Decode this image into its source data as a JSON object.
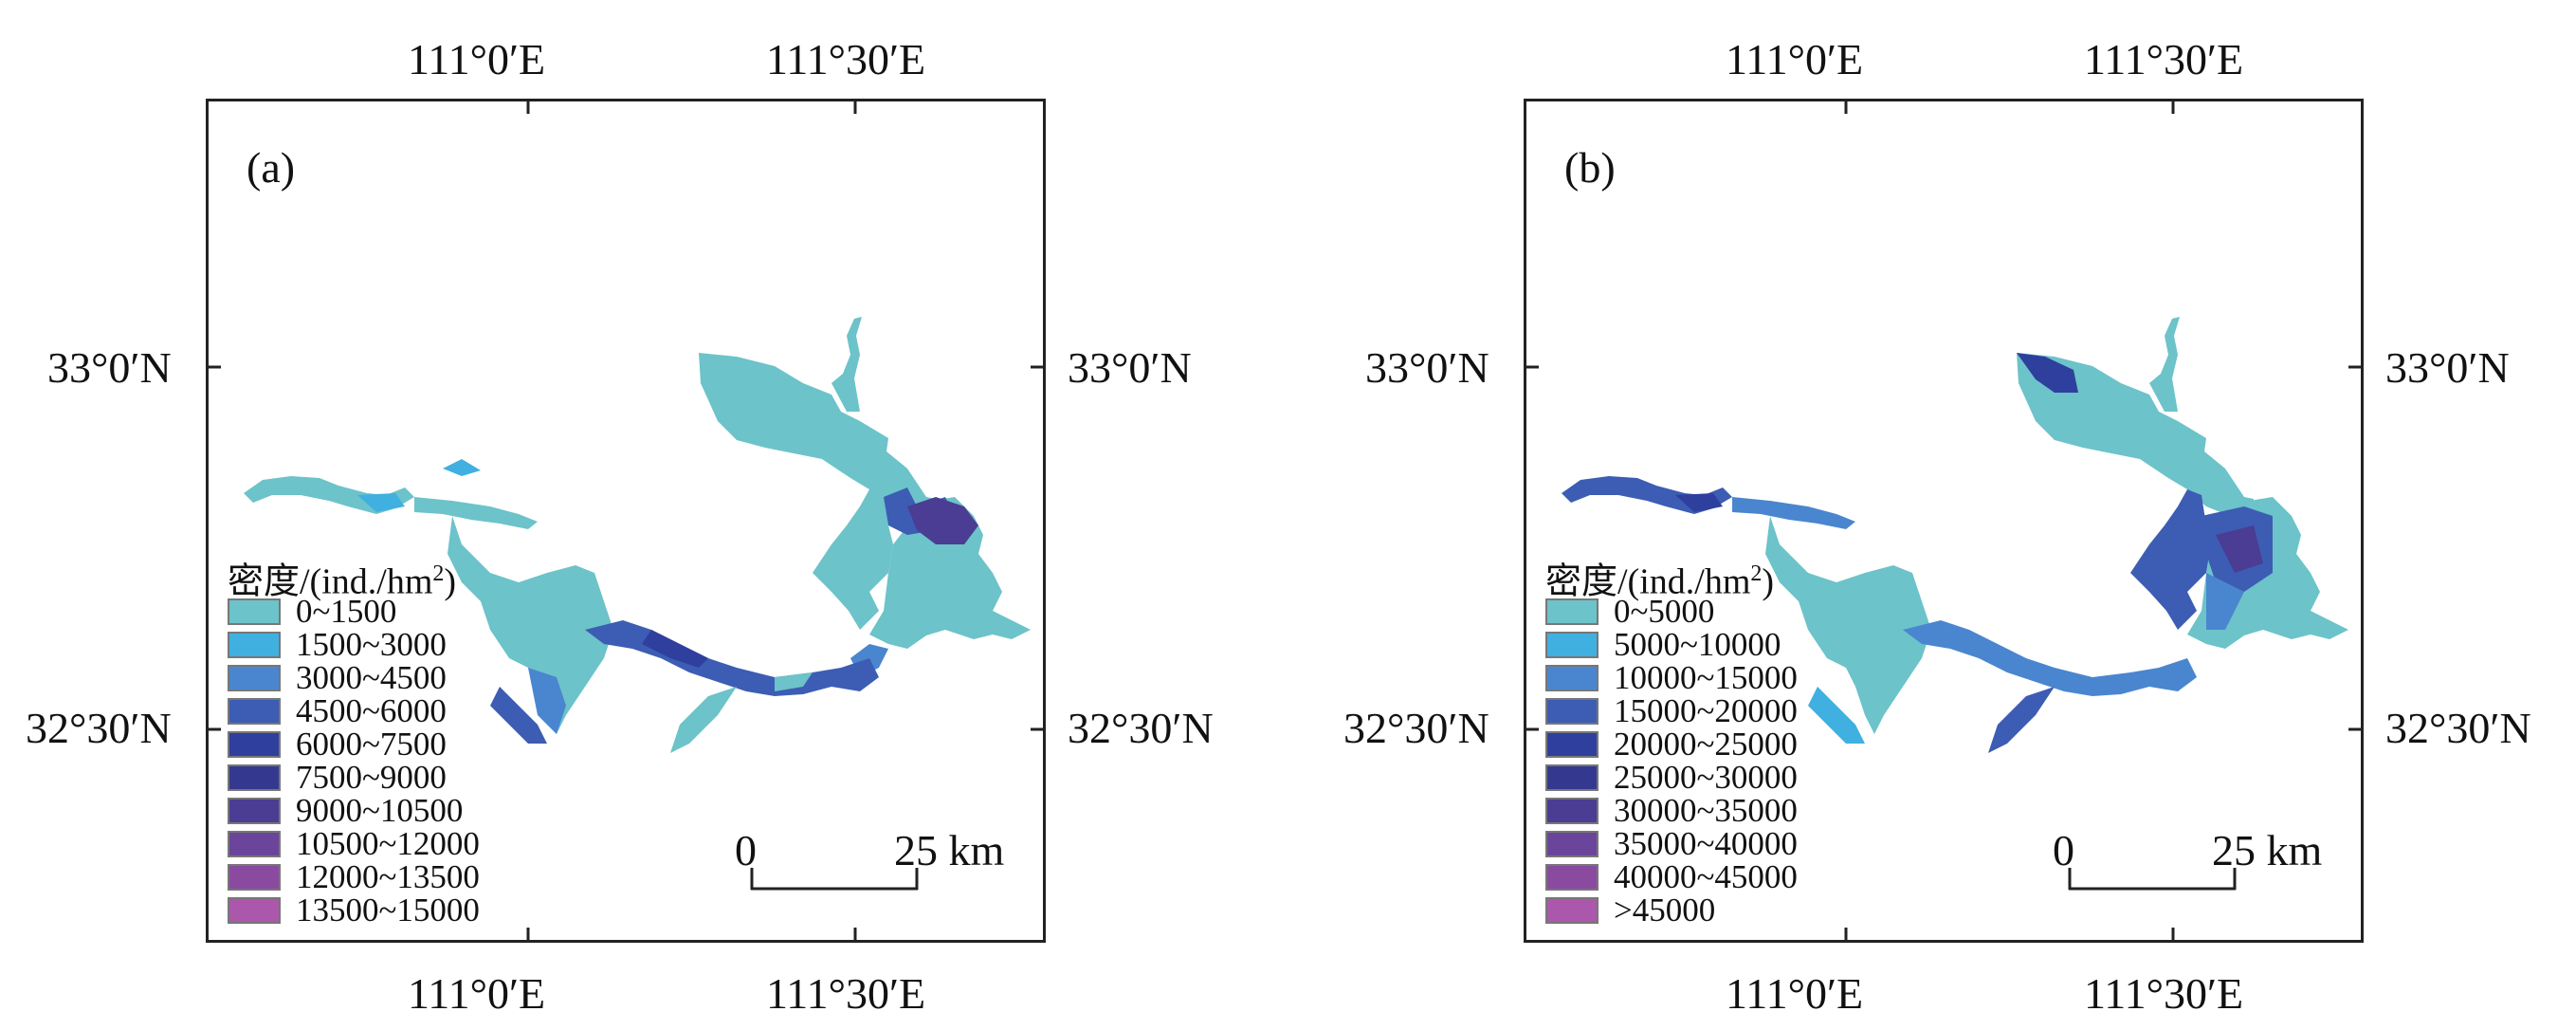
{
  "panels": [
    {
      "letter": "(a)",
      "lon_top": [
        "111°0′E",
        "111°30′E"
      ],
      "lon_bottom": [
        "111°0′E",
        "111°30′E"
      ],
      "lat_left": [
        "33°0′N",
        "32°30′N"
      ],
      "lat_right": [
        "33°0′N",
        "32°30′N"
      ],
      "legend_title": "密度/(ind./hm",
      "legend_title_sup": "2",
      "legend_title_close": ")",
      "legend": [
        {
          "label": "0~1500",
          "color": "#6cc3c9"
        },
        {
          "label": "1500~3000",
          "color": "#3fb0e0"
        },
        {
          "label": "3000~4500",
          "color": "#4a86cf"
        },
        {
          "label": "4500~6000",
          "color": "#3c5db3"
        },
        {
          "label": "6000~7500",
          "color": "#2f3f9e"
        },
        {
          "label": "7500~9000",
          "color": "#34398f"
        },
        {
          "label": "9000~10500",
          "color": "#4a3d93"
        },
        {
          "label": "10500~12000",
          "color": "#6a459b"
        },
        {
          "label": "12000~13500",
          "color": "#8a4aa0"
        },
        {
          "label": "13500~15000",
          "color": "#ab58ac"
        }
      ],
      "scale_zero": "0",
      "scale_dist": "25 km"
    },
    {
      "letter": "(b)",
      "lon_top": [
        "111°0′E",
        "111°30′E"
      ],
      "lon_bottom": [
        "111°0′E",
        "111°30′E"
      ],
      "lat_left": [
        "33°0′N",
        "32°30′N"
      ],
      "lat_right": [
        "33°0′N",
        "32°30′N"
      ],
      "legend_title": "密度/(ind./hm",
      "legend_title_sup": "2",
      "legend_title_close": ")",
      "legend": [
        {
          "label": "0~5000",
          "color": "#6cc3c9"
        },
        {
          "label": "5000~10000",
          "color": "#3fb0e0"
        },
        {
          "label": "10000~15000",
          "color": "#4a86cf"
        },
        {
          "label": "15000~20000",
          "color": "#3c5db3"
        },
        {
          "label": "20000~25000",
          "color": "#2f3f9e"
        },
        {
          "label": "25000~30000",
          "color": "#34398f"
        },
        {
          "label": "30000~35000",
          "color": "#4a3d93"
        },
        {
          "label": "35000~40000",
          "color": "#6a459b"
        },
        {
          "label": "40000~45000",
          "color": "#8a4aa0"
        },
        {
          "label": ">45000",
          "color": "#ab58ac"
        }
      ],
      "scale_zero": "0",
      "scale_dist": "25 km"
    }
  ]
}
